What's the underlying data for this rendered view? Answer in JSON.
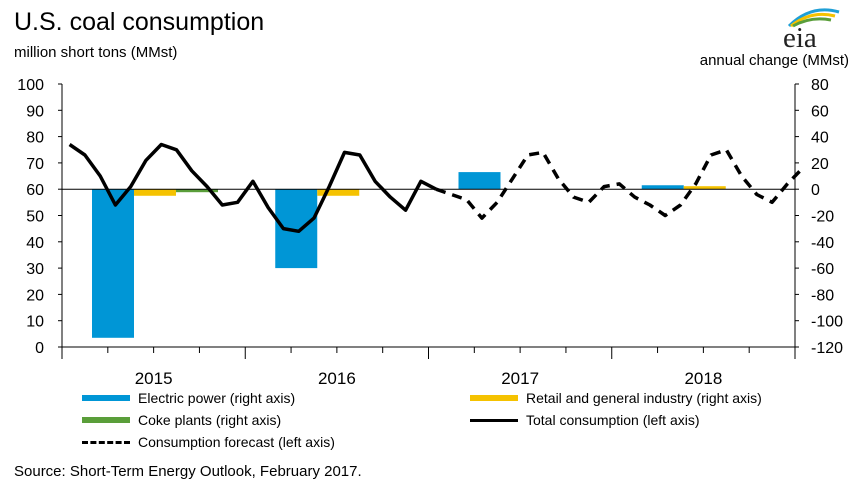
{
  "header": {
    "title": "U.S. coal consumption",
    "subtitle": "million short tons (MMst)",
    "right_axis_label": "annual change (MMst)",
    "logo_text": "eia"
  },
  "footer": {
    "source": "Source: Short-Term Energy Outlook, February 2017."
  },
  "legend": {
    "electric": "Electric power (right axis)",
    "retail": "Retail and general industry (right axis)",
    "coke": "Coke plants (right axis)",
    "total": "Total consumption (left axis)",
    "forecast": "Consumption forecast (left axis)"
  },
  "colors": {
    "electric": "#0096d6",
    "retail": "#f5c200",
    "coke": "#5a9e3a",
    "line": "#000000"
  },
  "chart_data": {
    "type": "bar",
    "categories": [
      "2015",
      "2016",
      "2017",
      "2018"
    ],
    "left_axis": {
      "ylim": [
        0,
        100
      ],
      "ticks": [
        "0",
        "10",
        "20",
        "30",
        "40",
        "50",
        "60",
        "70",
        "80",
        "90",
        "100"
      ]
    },
    "right_axis": {
      "ylim": [
        -120,
        80
      ],
      "ticks": [
        "-120",
        "-100",
        "-80",
        "-60",
        "-40",
        "-20",
        "0",
        "20",
        "40",
        "60",
        "80"
      ]
    },
    "bars": [
      {
        "name": "Electric power (right axis)",
        "values": [
          -113,
          -60,
          13,
          3
        ]
      },
      {
        "name": "Retail and general industry (right axis)",
        "values": [
          -5,
          -5,
          0,
          1
        ]
      },
      {
        "name": "Coke plants (right axis)",
        "values": [
          -1,
          0,
          0,
          0
        ]
      }
    ],
    "line_total": {
      "name": "Total consumption (left axis)",
      "months_from_2015_01": [
        0,
        1,
        2,
        3,
        4,
        5,
        6,
        7,
        8,
        9,
        10,
        11,
        12,
        13,
        14,
        15,
        16,
        17,
        18,
        19,
        20,
        21,
        22,
        23,
        24
      ],
      "values": [
        77,
        73,
        65,
        54,
        61,
        71,
        77,
        75,
        67,
        61,
        54,
        55,
        63,
        53,
        45,
        44,
        49,
        61,
        74,
        73,
        63,
        57,
        52,
        63,
        60
      ]
    },
    "line_forecast": {
      "name": "Consumption forecast (left axis)",
      "months_from_2015_01": [
        24,
        25,
        26,
        27,
        28,
        29,
        30,
        31,
        32,
        33,
        34,
        35,
        36,
        37,
        38,
        39,
        40,
        41,
        42,
        43,
        44,
        45,
        46,
        47,
        48
      ],
      "values": [
        60,
        58,
        56,
        49,
        55,
        64,
        73,
        74,
        64,
        57,
        55,
        61,
        62,
        57,
        54,
        50,
        54,
        62,
        73,
        75,
        65,
        58,
        55,
        62,
        68
      ]
    }
  }
}
